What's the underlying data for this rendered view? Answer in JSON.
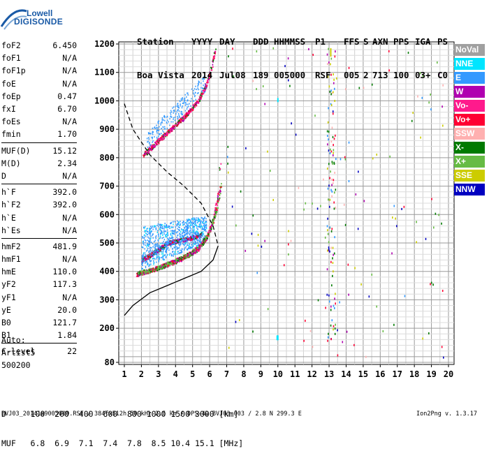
{
  "logo": {
    "line1": "Lowell",
    "line2": "DIGISONDE"
  },
  "header": {
    "row1": [
      "Station",
      "YYYY",
      "DAY",
      "DDD",
      "HHMMSS",
      "P1",
      "FFS",
      "S",
      "AXN",
      "PPS",
      "IGA",
      "PS"
    ],
    "row2": [
      "Boa Vista",
      "2014",
      "Jul08",
      "189",
      "005000",
      "RSF",
      "005",
      "2",
      "713",
      "100",
      "03+",
      "C0"
    ]
  },
  "params": {
    "groups": [
      [
        {
          "name": "foF2",
          "value": "6.450"
        },
        {
          "name": "foF1",
          "value": "N/A"
        },
        {
          "name": "foF1p",
          "value": "N/A"
        },
        {
          "name": "foE",
          "value": "N/A"
        },
        {
          "name": "foEp",
          "value": "0.47"
        },
        {
          "name": "fxI",
          "value": "6.70"
        },
        {
          "name": "foEs",
          "value": "N/A"
        },
        {
          "name": "fmin",
          "value": "1.70"
        }
      ],
      [
        {
          "name": "MUF(D)",
          "value": "15.12"
        },
        {
          "name": "M(D)",
          "value": "2.34"
        },
        {
          "name": "D",
          "value": "N/A"
        }
      ],
      [
        {
          "name": "h`F",
          "value": "392.0"
        },
        {
          "name": "h`F2",
          "value": "392.0"
        },
        {
          "name": "h`E",
          "value": "N/A"
        },
        {
          "name": "h`Es",
          "value": "N/A"
        }
      ],
      [
        {
          "name": "hmF2",
          "value": "481.9"
        },
        {
          "name": "hmF1",
          "value": "N/A"
        },
        {
          "name": "hmE",
          "value": "110.0"
        },
        {
          "name": "yF2",
          "value": "117.3"
        },
        {
          "name": "yF1",
          "value": "N/A"
        },
        {
          "name": "yE",
          "value": "20.0"
        },
        {
          "name": "B0",
          "value": "121.7"
        },
        {
          "name": "B1",
          "value": "1.84"
        }
      ],
      [
        {
          "name": "C-level",
          "value": "22"
        }
      ]
    ]
  },
  "auto": {
    "line1": "Auto:",
    "line2": "Artist5",
    "line3": "500200"
  },
  "legend": [
    {
      "label": "NoVal",
      "color": "#a0a0a0"
    },
    {
      "label": "NNE",
      "color": "#00e5ff"
    },
    {
      "label": "E",
      "color": "#3399ff"
    },
    {
      "label": "W",
      "color": "#b000b0"
    },
    {
      "label": "Vo-",
      "color": "#ff1a8c"
    },
    {
      "label": "Vo+",
      "color": "#ff0033"
    },
    {
      "label": "SSW",
      "color": "#ffb0b0"
    },
    {
      "label": "X-",
      "color": "#007a00"
    },
    {
      "label": "X+",
      "color": "#66bb44"
    },
    {
      "label": "SSE",
      "color": "#cccc00"
    },
    {
      "label": "NNW",
      "color": "#0000c0"
    }
  ],
  "bottom": {
    "d_line": "D     100  200  400  600  800 1000 1500 3000 [km]",
    "muf_line": "MUF   6.8  6.9  7.1  7.4  7.8  8.5 10.4 15.1 [MHz]"
  },
  "footer": {
    "left": "BVJ03_2014189005000.RSF / 384fx512h 50 kHz 2.5 km / DPS-4D BVJ03 003 / 2.8 N 299.3 E",
    "right": "Ion2Png v. 1.3.17"
  },
  "chart_data": {
    "type": "scatter",
    "xlim": [
      1,
      20
    ],
    "ylim": [
      80,
      1200
    ],
    "x_ticks": [
      1,
      2,
      3,
      4,
      5,
      6,
      7,
      8,
      9,
      10,
      11,
      12,
      13,
      14,
      15,
      16,
      17,
      18,
      19,
      20
    ],
    "y_ticks": [
      80,
      100,
      200,
      300,
      400,
      500,
      600,
      700,
      800,
      900,
      1000,
      1100,
      1200
    ],
    "y_tick_labels": [
      "80",
      "",
      "200",
      "300",
      "400",
      "500",
      "600",
      "700",
      "800",
      "900",
      "1000",
      "1100",
      "1200"
    ],
    "grid": true,
    "series": [
      {
        "color": "#ff1a8c",
        "trace": [
          [
            1.7,
            390
          ],
          [
            2.5,
            405
          ],
          [
            3.5,
            425
          ],
          [
            4.5,
            450
          ],
          [
            5.3,
            480
          ],
          [
            5.8,
            520
          ],
          [
            6.2,
            580
          ],
          [
            6.5,
            680
          ],
          [
            6.6,
            780
          ]
        ]
      },
      {
        "color": "#66bb44",
        "trace": [
          [
            1.8,
            395
          ],
          [
            2.8,
            410
          ],
          [
            3.8,
            435
          ],
          [
            4.8,
            462
          ],
          [
            5.5,
            495
          ],
          [
            6.0,
            545
          ],
          [
            6.4,
            620
          ],
          [
            6.7,
            720
          ]
        ]
      },
      {
        "color": "#ff1a8c",
        "trace": [
          [
            2.1,
            810
          ],
          [
            2.8,
            850
          ],
          [
            3.5,
            890
          ],
          [
            4.5,
            945
          ],
          [
            5.3,
            1000
          ],
          [
            5.8,
            1060
          ],
          [
            6.1,
            1120
          ],
          [
            6.3,
            1180
          ]
        ]
      },
      {
        "color": "#3399ff",
        "trace": [
          [
            2.0,
            440
          ],
          [
            2.8,
            470
          ],
          [
            3.5,
            500
          ],
          [
            4.2,
            510
          ],
          [
            5.0,
            520
          ],
          [
            5.5,
            530
          ]
        ]
      }
    ],
    "profile_dashed": [
      [
        1,
        990
      ],
      [
        1.5,
        900
      ],
      [
        2.5,
        810
      ],
      [
        3.5,
        750
      ],
      [
        4.5,
        700
      ],
      [
        5.5,
        640
      ],
      [
        6.2,
        560
      ],
      [
        6.5,
        490
      ]
    ],
    "profile_solid": [
      [
        1,
        245
      ],
      [
        1.5,
        280
      ],
      [
        2.5,
        325
      ],
      [
        3.5,
        350
      ],
      [
        4.5,
        375
      ],
      [
        5.5,
        400
      ],
      [
        6.2,
        440
      ],
      [
        6.5,
        490
      ]
    ]
  }
}
